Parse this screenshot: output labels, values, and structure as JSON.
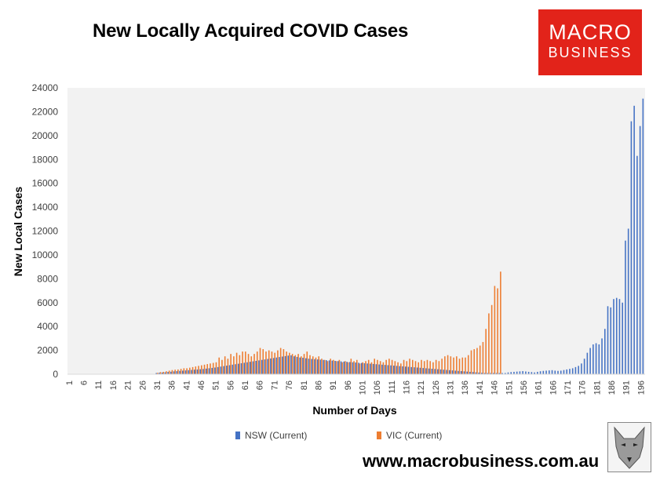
{
  "header": {
    "title": "New Locally Acquired COVID Cases"
  },
  "logo": {
    "line1": "MACRO",
    "line2": "BUSINESS",
    "color": "#e2231a"
  },
  "footer": {
    "website": "www.macrobusiness.com.au"
  },
  "chart_data": {
    "type": "bar",
    "xlabel": "Number of Days",
    "ylabel": "New Local Cases",
    "ylim": [
      0,
      24000
    ],
    "yticks": [
      0,
      2000,
      4000,
      6000,
      8000,
      10000,
      12000,
      14000,
      16000,
      18000,
      20000,
      22000,
      24000
    ],
    "xtick_labels": [
      "1",
      "6",
      "11",
      "16",
      "21",
      "26",
      "31",
      "36",
      "41",
      "46",
      "51",
      "56",
      "61",
      "66",
      "71",
      "76",
      "81",
      "86",
      "91",
      "96",
      "101",
      "106",
      "111",
      "116",
      "121",
      "126",
      "131",
      "136",
      "141",
      "146",
      "151",
      "156",
      "161",
      "166",
      "171",
      "176",
      "181",
      "186",
      "191",
      "196"
    ],
    "grid": false,
    "plot_background": "#f2f2f2",
    "legend_position": "bottom",
    "x_start": 1,
    "series": [
      {
        "name": "NSW (Current)",
        "color": "#4472c4",
        "values": [
          0,
          0,
          0,
          0,
          0,
          0,
          0,
          0,
          0,
          0,
          0,
          0,
          0,
          0,
          0,
          0,
          0,
          0,
          0,
          0,
          0,
          0,
          0,
          0,
          0,
          0,
          0,
          0,
          0,
          0,
          100,
          120,
          140,
          160,
          190,
          210,
          240,
          260,
          280,
          300,
          320,
          340,
          360,
          380,
          400,
          420,
          440,
          470,
          500,
          530,
          560,
          600,
          640,
          680,
          720,
          760,
          800,
          840,
          880,
          920,
          960,
          1000,
          1040,
          1080,
          1120,
          1160,
          1200,
          1240,
          1280,
          1320,
          1360,
          1400,
          1440,
          1480,
          1520,
          1560,
          1580,
          1500,
          1450,
          1400,
          1380,
          1340,
          1300,
          1280,
          1260,
          1240,
          1220,
          1200,
          1180,
          1160,
          1140,
          1120,
          1100,
          1080,
          1060,
          1040,
          1020,
          1000,
          980,
          960,
          940,
          920,
          900,
          880,
          860,
          840,
          820,
          800,
          780,
          760,
          740,
          720,
          700,
          680,
          660,
          640,
          620,
          600,
          580,
          560,
          540,
          520,
          500,
          480,
          460,
          440,
          420,
          400,
          380,
          360,
          340,
          320,
          300,
          280,
          260,
          240,
          220,
          200,
          180,
          160,
          140,
          120,
          100,
          100,
          100,
          100,
          100,
          100,
          100,
          100,
          150,
          180,
          200,
          220,
          240,
          260,
          230,
          200,
          180,
          150,
          200,
          250,
          280,
          300,
          320,
          340,
          300,
          280,
          300,
          350,
          400,
          450,
          500,
          600,
          700,
          900,
          1300,
          1800,
          2200,
          2500,
          2600,
          2500,
          3000,
          3800,
          5700,
          5600,
          6300,
          6400,
          6300,
          6000,
          11200,
          12200,
          21200,
          22500,
          18300,
          20800,
          23100
        ]
      },
      {
        "name": "VIC (Current)",
        "color": "#ed7d31",
        "values": [
          0,
          0,
          0,
          0,
          0,
          0,
          0,
          0,
          0,
          0,
          0,
          0,
          0,
          0,
          0,
          0,
          0,
          0,
          0,
          0,
          0,
          0,
          0,
          0,
          0,
          0,
          0,
          0,
          0,
          0,
          120,
          180,
          200,
          250,
          300,
          350,
          380,
          400,
          450,
          500,
          500,
          550,
          600,
          650,
          700,
          750,
          800,
          850,
          900,
          950,
          1000,
          1400,
          1200,
          1500,
          1300,
          1700,
          1500,
          1800,
          1600,
          1900,
          1900,
          1700,
          1500,
          1700,
          1900,
          2200,
          2100,
          1900,
          2000,
          1900,
          1800,
          2000,
          2200,
          2100,
          1900,
          1800,
          1700,
          1600,
          1700,
          1500,
          1700,
          1900,
          1600,
          1500,
          1400,
          1500,
          1300,
          1200,
          1100,
          1300,
          1200,
          1100,
          1200,
          1000,
          1100,
          1000,
          1300,
          1100,
          1200,
          900,
          1000,
          1100,
          1200,
          1000,
          1300,
          1200,
          1100,
          1000,
          1200,
          1300,
          1200,
          1100,
          1000,
          900,
          1200,
          1100,
          1300,
          1200,
          1100,
          1000,
          1200,
          1100,
          1200,
          1100,
          1000,
          1200,
          1100,
          1300,
          1500,
          1600,
          1500,
          1400,
          1500,
          1300,
          1400,
          1400,
          1600,
          2000,
          2100,
          2200,
          2400,
          2700,
          3800,
          5100,
          5800,
          7400,
          7200,
          8600
        ]
      }
    ]
  }
}
